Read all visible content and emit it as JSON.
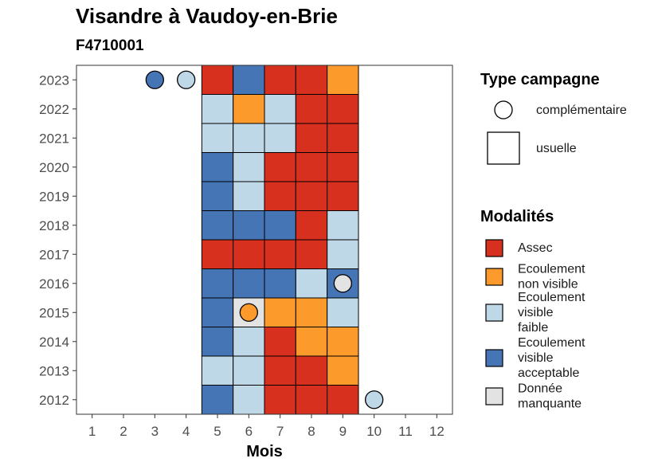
{
  "header": {
    "title": "Visandre à Vaudoy-en-Brie",
    "subtitle": "F4710001"
  },
  "chart_data": {
    "type": "heatmap",
    "title": "Visandre à Vaudoy-en-Brie",
    "subtitle": "F4710001",
    "xlabel": "Mois",
    "ylabel": "",
    "x_ticks": [
      "1",
      "2",
      "3",
      "4",
      "5",
      "6",
      "7",
      "8",
      "9",
      "10",
      "11",
      "12"
    ],
    "y_ticks": [
      "2012",
      "2013",
      "2014",
      "2015",
      "2016",
      "2017",
      "2018",
      "2019",
      "2020",
      "2021",
      "2022",
      "2023"
    ],
    "xlim": [
      0.5,
      12.5
    ],
    "ylim": [
      2011.5,
      2023.5
    ],
    "grid": false,
    "legend_position": "right",
    "colors": {
      "Assec": "#d7301f",
      "Ecoulement non visible": "#fd9a2c",
      "Ecoulement visible faible": "#bed8e8",
      "Ecoulement visible acceptable": "#4575b4",
      "Donnée manquante": "#e3e3e3"
    },
    "legend_campagne": {
      "title": "Type campagne",
      "items": [
        {
          "label": "complémentaire",
          "shape": "circle"
        },
        {
          "label": "usuelle",
          "shape": "square"
        }
      ]
    },
    "legend_modalites": {
      "title": "Modalités",
      "items": [
        {
          "key": "Assec",
          "lines": [
            "Assec"
          ]
        },
        {
          "key": "Ecoulement non visible",
          "lines": [
            "Ecoulement",
            "non visible"
          ]
        },
        {
          "key": "Ecoulement visible faible",
          "lines": [
            "Ecoulement",
            "visible",
            "faible"
          ]
        },
        {
          "key": "Ecoulement visible acceptable",
          "lines": [
            "Ecoulement",
            "visible",
            "acceptable"
          ]
        },
        {
          "key": "Donnée manquante",
          "lines": [
            "Donnée",
            "manquante"
          ]
        }
      ]
    },
    "usuelle": [
      {
        "year": 2023,
        "months": {
          "5": "Assec",
          "6": "Ecoulement visible acceptable",
          "7": "Assec",
          "8": "Assec",
          "9": "Ecoulement non visible"
        }
      },
      {
        "year": 2022,
        "months": {
          "5": "Ecoulement visible faible",
          "6": "Ecoulement non visible",
          "7": "Ecoulement visible faible",
          "8": "Assec",
          "9": "Assec"
        }
      },
      {
        "year": 2021,
        "months": {
          "5": "Ecoulement visible faible",
          "6": "Ecoulement visible faible",
          "7": "Ecoulement visible faible",
          "8": "Assec",
          "9": "Assec"
        }
      },
      {
        "year": 2020,
        "months": {
          "5": "Ecoulement visible acceptable",
          "6": "Ecoulement visible faible",
          "7": "Assec",
          "8": "Assec",
          "9": "Assec"
        }
      },
      {
        "year": 2019,
        "months": {
          "5": "Ecoulement visible acceptable",
          "6": "Ecoulement visible faible",
          "7": "Assec",
          "8": "Assec",
          "9": "Assec"
        }
      },
      {
        "year": 2018,
        "months": {
          "5": "Ecoulement visible acceptable",
          "6": "Ecoulement visible acceptable",
          "7": "Ecoulement visible acceptable",
          "8": "Assec",
          "9": "Ecoulement visible faible"
        }
      },
      {
        "year": 2017,
        "months": {
          "5": "Assec",
          "6": "Assec",
          "7": "Assec",
          "8": "Assec",
          "9": "Ecoulement visible faible"
        }
      },
      {
        "year": 2016,
        "months": {
          "5": "Ecoulement visible acceptable",
          "6": "Ecoulement visible acceptable",
          "7": "Ecoulement visible acceptable",
          "8": "Ecoulement visible faible",
          "9": "Ecoulement visible acceptable"
        }
      },
      {
        "year": 2015,
        "months": {
          "5": "Ecoulement visible acceptable",
          "6": "Donnée manquante",
          "7": "Ecoulement non visible",
          "8": "Ecoulement non visible",
          "9": "Ecoulement visible faible"
        }
      },
      {
        "year": 2014,
        "months": {
          "5": "Ecoulement visible acceptable",
          "6": "Ecoulement visible faible",
          "7": "Assec",
          "8": "Ecoulement non visible",
          "9": "Ecoulement non visible"
        }
      },
      {
        "year": 2013,
        "months": {
          "5": "Ecoulement visible faible",
          "6": "Ecoulement visible faible",
          "7": "Assec",
          "8": "Assec",
          "9": "Ecoulement non visible"
        }
      },
      {
        "year": 2012,
        "months": {
          "5": "Ecoulement visible acceptable",
          "6": "Ecoulement visible faible",
          "7": "Assec",
          "8": "Assec",
          "9": "Assec"
        }
      }
    ],
    "complementaire": [
      {
        "year": 2023,
        "month": 3,
        "modalite": "Ecoulement visible acceptable"
      },
      {
        "year": 2023,
        "month": 4,
        "modalite": "Ecoulement visible faible"
      },
      {
        "year": 2016,
        "month": 9,
        "modalite": "Donnée manquante"
      },
      {
        "year": 2015,
        "month": 6,
        "modalite": "Ecoulement non visible"
      },
      {
        "year": 2012,
        "month": 10,
        "modalite": "Ecoulement visible faible"
      }
    ]
  }
}
